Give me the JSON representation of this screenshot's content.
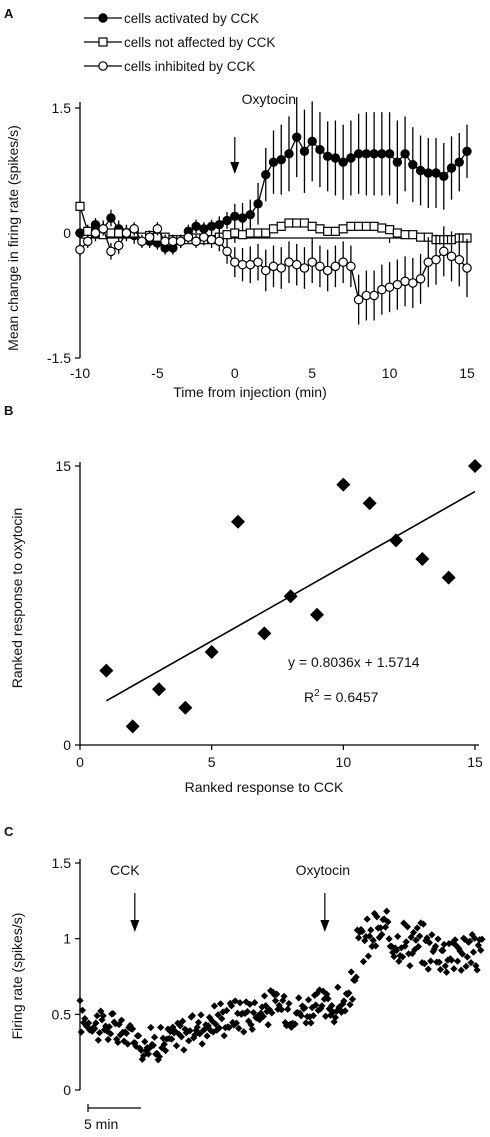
{
  "panels": {
    "a": {
      "label": "A",
      "type": "line",
      "ylabel": "Mean change in firing rate (spikes/s)",
      "xlabel": "Time from injection (min)",
      "xlim": [
        -10,
        15
      ],
      "ylim": [
        -1.5,
        1.5
      ],
      "xticks": [
        -10,
        -5,
        0,
        5,
        10,
        15
      ],
      "yticks": [
        {
          "v": 1.5,
          "t": "1.5"
        },
        {
          "v": 0,
          "t": "0"
        },
        {
          "v": -1.5,
          "t": "-1.5"
        }
      ],
      "legend": [
        "cells activated by CCK",
        "cells not affected by CCK",
        "cells inhibited by CCK"
      ],
      "annotation": {
        "text": "Oxytocin",
        "x": 0
      },
      "x": [
        -10,
        -9.5,
        -9,
        -8.5,
        -8,
        -7.5,
        -7,
        -6.5,
        -6,
        -5.5,
        -5,
        -4.5,
        -4,
        -3.5,
        -3,
        -2.5,
        -2,
        -1.5,
        -1,
        -0.5,
        0,
        0.5,
        1,
        1.5,
        2,
        2.5,
        3,
        3.5,
        4,
        4.5,
        5,
        5.5,
        6,
        6.5,
        7,
        7.5,
        8,
        8.5,
        9,
        9.5,
        10,
        10.5,
        11,
        11.5,
        12,
        12.5,
        13,
        13.5,
        14,
        14.5,
        15
      ],
      "series": [
        {
          "marker": "filled-circle",
          "values": [
            0,
            0.02,
            0.1,
            0.05,
            0.18,
            0.05,
            0,
            -0.03,
            -0.08,
            -0.1,
            -0.12,
            -0.18,
            -0.18,
            -0.1,
            0.02,
            0.08,
            0.05,
            0.08,
            0.1,
            0.15,
            0.2,
            0.18,
            0.22,
            0.35,
            0.7,
            0.85,
            0.88,
            0.95,
            1.15,
            0.98,
            1.1,
            1,
            0.92,
            0.9,
            0.85,
            0.9,
            0.95,
            0.95,
            0.95,
            0.95,
            0.95,
            0.85,
            0.95,
            0.82,
            0.75,
            0.72,
            0.72,
            0.68,
            0.78,
            0.85,
            0.98
          ],
          "err": [
            0,
            0.08,
            0.08,
            0.1,
            0.1,
            0.1,
            0.1,
            0.1,
            0.08,
            0.08,
            0.08,
            0.08,
            0.08,
            0.08,
            0.08,
            0.08,
            0.08,
            0.08,
            0.1,
            0.1,
            0.15,
            0.18,
            0.18,
            0.25,
            0.32,
            0.38,
            0.42,
            0.45,
            0.48,
            0.5,
            0.48,
            0.45,
            0.42,
            0.45,
            0.45,
            0.45,
            0.48,
            0.5,
            0.5,
            0.5,
            0.5,
            0.5,
            0.45,
            0.45,
            0.42,
            0.42,
            0.42,
            0.4,
            0.38,
            0.35,
            0.32
          ]
        },
        {
          "marker": "open-square",
          "values": [
            0.32,
            0.02,
            0,
            -0.02,
            0,
            0,
            0,
            0,
            -0.05,
            -0.03,
            -0.05,
            -0.05,
            -0.08,
            -0.08,
            -0.08,
            -0.06,
            -0.08,
            -0.08,
            -0.05,
            -0.02,
            0,
            -0.02,
            0,
            0,
            0,
            0.05,
            0.08,
            0.12,
            0.12,
            0.12,
            0.08,
            0.05,
            0.02,
            0.02,
            0.05,
            0.08,
            0.08,
            0.08,
            0.08,
            0.06,
            0.04,
            0,
            -0.02,
            -0.02,
            -0.05,
            -0.05,
            -0.08,
            -0.08,
            -0.08,
            -0.06,
            -0.06
          ],
          "err": [
            0.06,
            0.06,
            0.05,
            0.05,
            0.05,
            0.05,
            0.05,
            0.05,
            0.05,
            0.05,
            0.05,
            0.05,
            0.05,
            0.05,
            0.05,
            0.05,
            0.05,
            0.05,
            0.05,
            0.05,
            0.05,
            0.05,
            0.05,
            0.05,
            0.05,
            0.05,
            0.05,
            0.05,
            0.05,
            0.05,
            0.05,
            0.05,
            0.05,
            0.05,
            0.05,
            0.05,
            0.05,
            0.05,
            0.05,
            0.05,
            0.05,
            0.05,
            0.05,
            0.05,
            0.05,
            0.05,
            0.05,
            0.05,
            0.05,
            0.05,
            0.05
          ]
        },
        {
          "marker": "open-circle",
          "values": [
            -0.2,
            -0.1,
            0,
            0.05,
            -0.22,
            -0.15,
            0,
            0.05,
            -0.1,
            -0.05,
            0.05,
            -0.1,
            -0.1,
            -0.1,
            -0.05,
            -0.1,
            -0.05,
            -0.08,
            -0.1,
            -0.22,
            -0.35,
            -0.38,
            -0.38,
            -0.35,
            -0.45,
            -0.4,
            -0.42,
            -0.35,
            -0.38,
            -0.42,
            -0.35,
            -0.4,
            -0.45,
            -0.4,
            -0.35,
            -0.4,
            -0.8,
            -0.75,
            -0.75,
            -0.68,
            -0.65,
            -0.62,
            -0.58,
            -0.6,
            -0.55,
            -0.35,
            -0.32,
            -0.22,
            -0.28,
            -0.32,
            -0.42
          ],
          "err": [
            0.08,
            0.08,
            0.1,
            0.08,
            0.1,
            0.1,
            0.08,
            0.08,
            0.08,
            0.08,
            0.08,
            0.08,
            0.08,
            0.08,
            0.08,
            0.08,
            0.1,
            0.1,
            0.12,
            0.15,
            0.18,
            0.2,
            0.22,
            0.22,
            0.25,
            0.25,
            0.25,
            0.25,
            0.25,
            0.25,
            0.25,
            0.25,
            0.25,
            0.25,
            0.25,
            0.25,
            0.3,
            0.3,
            0.3,
            0.3,
            0.3,
            0.3,
            0.3,
            0.3,
            0.3,
            0.3,
            0.3,
            0.3,
            0.3,
            0.32,
            0.35
          ]
        }
      ]
    },
    "b": {
      "label": "B",
      "type": "scatter",
      "ylabel": "Ranked response to oxytocin",
      "xlabel": "Ranked response to CCK",
      "xlim": [
        0,
        15
      ],
      "ylim": [
        0,
        15
      ],
      "xticks": [
        0,
        5,
        10,
        15
      ],
      "yticks": [
        {
          "v": 15,
          "t": "15"
        },
        {
          "v": 0,
          "t": "0"
        }
      ],
      "points": [
        [
          1,
          4
        ],
        [
          2,
          1
        ],
        [
          3,
          3
        ],
        [
          4,
          2
        ],
        [
          5,
          5
        ],
        [
          6,
          12
        ],
        [
          7,
          6
        ],
        [
          8,
          8
        ],
        [
          9,
          7
        ],
        [
          10,
          14
        ],
        [
          11,
          13
        ],
        [
          12,
          11
        ],
        [
          13,
          10
        ],
        [
          14,
          9
        ],
        [
          15,
          15
        ]
      ],
      "fit": {
        "slope": 0.8036,
        "intercept": 1.5714,
        "equation": "y = 0.8036x + 1.5714",
        "r2_label": "R",
        "r2_sup": "2",
        "r2_value": " = 0.6457"
      }
    },
    "c": {
      "label": "C",
      "type": "scatter",
      "ylabel": "Firing rate (spikes/s)",
      "ylim": [
        0,
        1.5
      ],
      "yticks": [
        {
          "v": 1.5,
          "t": "1.5"
        },
        {
          "v": 1,
          "t": "1"
        },
        {
          "v": 0.5,
          "t": "0.5"
        },
        {
          "v": 0,
          "t": "0"
        }
      ],
      "scalebar": "5 min",
      "annotations": [
        {
          "text": "CCK",
          "x": 7.5
        },
        {
          "text": "Oxytocin",
          "x": 33.5
        }
      ],
      "x_range_min": [
        0,
        55
      ],
      "trend": [
        [
          0,
          0.48
        ],
        [
          3,
          0.43
        ],
        [
          6,
          0.38
        ],
        [
          7.5,
          0.35
        ],
        [
          9,
          0.3
        ],
        [
          12,
          0.32
        ],
        [
          15,
          0.4
        ],
        [
          18,
          0.45
        ],
        [
          21,
          0.5
        ],
        [
          24,
          0.52
        ],
        [
          27,
          0.56
        ],
        [
          30,
          0.53
        ],
        [
          33,
          0.55
        ],
        [
          35,
          0.55
        ],
        [
          37,
          0.58
        ],
        [
          38,
          0.95
        ],
        [
          41,
          1.05
        ],
        [
          44,
          1
        ],
        [
          47,
          0.95
        ],
        [
          50,
          0.92
        ],
        [
          53,
          0.92
        ],
        [
          55,
          0.92
        ]
      ]
    }
  }
}
